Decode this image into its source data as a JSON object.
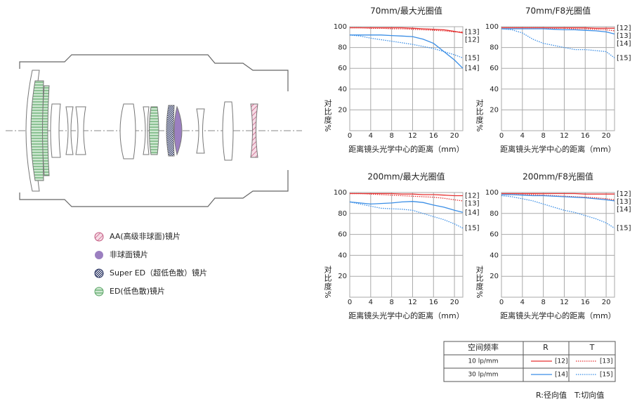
{
  "chart_data": [
    {
      "type": "line",
      "title": "70mm/最大光圈值",
      "xlabel": "距离镜头光学中心的距离（mm）",
      "ylabel": "对比度%",
      "x": [
        0,
        2,
        4,
        6,
        8,
        10,
        12,
        14,
        16,
        18,
        20,
        21.6
      ],
      "xlim": [
        0,
        21.6
      ],
      "xticks": [
        0,
        4,
        8,
        12,
        16,
        20
      ],
      "ylim": [
        0,
        100
      ],
      "yticks": [
        20,
        40,
        60,
        80,
        100
      ],
      "grid": true,
      "series": [
        {
          "name": "[12]",
          "color": "#e53030",
          "style": "solid",
          "values": [
            99,
            99,
            99,
            99,
            99,
            99,
            98.5,
            98,
            97.5,
            97,
            95.5,
            94
          ]
        },
        {
          "name": "[13]",
          "color": "#e53030",
          "style": "dotted",
          "values": [
            99,
            99,
            98.5,
            98.5,
            98,
            98,
            97.5,
            97,
            96.5,
            96,
            95,
            95
          ]
        },
        {
          "name": "[14]",
          "color": "#3a8ee6",
          "style": "solid",
          "values": [
            92,
            92,
            92,
            92,
            91.5,
            91,
            90.5,
            88,
            84,
            76,
            68,
            60
          ]
        },
        {
          "name": "[15]",
          "color": "#3a8ee6",
          "style": "dotted",
          "values": [
            92,
            91,
            89,
            87.5,
            86,
            84.5,
            83,
            81,
            79,
            76,
            73,
            70
          ]
        }
      ]
    },
    {
      "type": "line",
      "title": "70mm/F8光圈值",
      "xlabel": "距离镜头光学中心的距离（mm）",
      "ylabel": "对比度%",
      "x": [
        0,
        2,
        4,
        6,
        8,
        10,
        12,
        14,
        16,
        18,
        20,
        21.6
      ],
      "xlim": [
        0,
        21.6
      ],
      "xticks": [
        0,
        4,
        8,
        12,
        16,
        20
      ],
      "ylim": [
        0,
        100
      ],
      "yticks": [
        20,
        40,
        60,
        80,
        100
      ],
      "grid": true,
      "series": [
        {
          "name": "[12]",
          "color": "#e53030",
          "style": "solid",
          "values": [
            99,
            99,
            99,
            99,
            99,
            99,
            99,
            99,
            99,
            98.5,
            98.5,
            98.5
          ]
        },
        {
          "name": "[13]",
          "color": "#e53030",
          "style": "dotted",
          "values": [
            99,
            99,
            99,
            99,
            99,
            98.5,
            98.5,
            98,
            98,
            97.5,
            97,
            96
          ]
        },
        {
          "name": "[14]",
          "color": "#3a8ee6",
          "style": "solid",
          "values": [
            98,
            98,
            98,
            98,
            98,
            97.5,
            97,
            97,
            96.5,
            96,
            95,
            93
          ]
        },
        {
          "name": "[15]",
          "color": "#3a8ee6",
          "style": "dotted",
          "values": [
            98,
            97,
            94,
            88,
            84,
            82,
            80,
            78,
            78,
            77,
            76,
            70
          ]
        }
      ]
    },
    {
      "type": "line",
      "title": "200mm/最大光圈值",
      "xlabel": "距离镜头光学中心的距离（mm）",
      "ylabel": "对比度%",
      "x": [
        0,
        2,
        4,
        6,
        8,
        10,
        12,
        14,
        16,
        18,
        20,
        21.6
      ],
      "xlim": [
        0,
        21.6
      ],
      "xticks": [
        0,
        4,
        8,
        12,
        16,
        20
      ],
      "ylim": [
        0,
        100
      ],
      "yticks": [
        20,
        40,
        60,
        80,
        100
      ],
      "grid": true,
      "series": [
        {
          "name": "[12]",
          "color": "#e53030",
          "style": "solid",
          "values": [
            99,
            99,
            99,
            99,
            99,
            98.5,
            98.5,
            98,
            98,
            97.5,
            97,
            97
          ]
        },
        {
          "name": "[13]",
          "color": "#e53030",
          "style": "dotted",
          "values": [
            99,
            99,
            98.5,
            98,
            97.5,
            97,
            96.5,
            96,
            95.5,
            94.5,
            93,
            92
          ]
        },
        {
          "name": "[14]",
          "color": "#3a8ee6",
          "style": "solid",
          "values": [
            91,
            90,
            89,
            89.5,
            90,
            91,
            91.5,
            90.5,
            88,
            86,
            83,
            81
          ]
        },
        {
          "name": "[15]",
          "color": "#3a8ee6",
          "style": "dotted",
          "values": [
            91,
            89,
            87,
            85,
            84.5,
            84,
            83,
            80,
            77,
            74,
            70,
            66
          ]
        }
      ]
    },
    {
      "type": "line",
      "title": "200mm/F8光圈值",
      "xlabel": "距离镜头光学中心的距离（mm）",
      "ylabel": "对比度%",
      "x": [
        0,
        2,
        4,
        6,
        8,
        10,
        12,
        14,
        16,
        18,
        20,
        21.6
      ],
      "xlim": [
        0,
        21.6
      ],
      "xticks": [
        0,
        4,
        8,
        12,
        16,
        20
      ],
      "ylim": [
        0,
        100
      ],
      "yticks": [
        20,
        40,
        60,
        80,
        100
      ],
      "grid": true,
      "series": [
        {
          "name": "[12]",
          "color": "#e53030",
          "style": "solid",
          "values": [
            99,
            99,
            99,
            99,
            99,
            99,
            99,
            99,
            98.5,
            98.5,
            98.5,
            98.5
          ]
        },
        {
          "name": "[13]",
          "color": "#e53030",
          "style": "dotted",
          "values": [
            98,
            98,
            98,
            98,
            97.5,
            97,
            96.5,
            96,
            95.5,
            95,
            94,
            93
          ]
        },
        {
          "name": "[14]",
          "color": "#3a8ee6",
          "style": "solid",
          "values": [
            98,
            98,
            97.5,
            97,
            97,
            96.5,
            96,
            95.5,
            95,
            94,
            93,
            92
          ]
        },
        {
          "name": "[15]",
          "color": "#3a8ee6",
          "style": "dotted",
          "values": [
            97,
            96,
            94,
            92,
            89,
            86,
            83,
            81,
            78,
            75,
            71,
            66
          ]
        }
      ]
    }
  ],
  "lens_legend": [
    "AA(高级非球面)镜片",
    "非球面镜片",
    "Super ED（超低色散）镜片",
    "ED(低色散)镜片"
  ],
  "table": {
    "header": [
      "空间频率",
      "R",
      "T"
    ],
    "rows": [
      [
        "10 lp/mm",
        "[12]",
        "[13]"
      ],
      [
        "30 lp/mm",
        "[14]",
        "[15]"
      ]
    ]
  },
  "footnote": "R:径向值　T:切向值"
}
